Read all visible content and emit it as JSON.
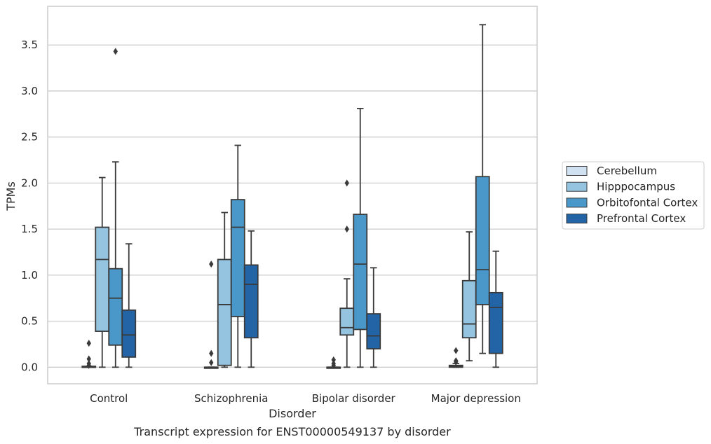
{
  "caption": "Transcript expression for ENST00000549137 by disorder",
  "chart_data": {
    "type": "boxplot",
    "xlabel": "Disorder",
    "ylabel": "TPMs",
    "ylim": [
      -0.18,
      3.92
    ],
    "yticks": [
      0.0,
      0.5,
      1.0,
      1.5,
      2.0,
      2.5,
      3.0,
      3.5
    ],
    "ytick_labels": [
      "0.0",
      "0.5",
      "1.0",
      "1.5",
      "2.0",
      "2.5",
      "3.0",
      "3.5"
    ],
    "grid": "horizontal",
    "legend_position": "right",
    "categories": [
      "Control",
      "Schizophrenia",
      "Bipolar disorder",
      "Major depression"
    ],
    "series": [
      {
        "name": "Cerebellum",
        "color": "#d0e1f2",
        "boxes": [
          {
            "q1": 0.0,
            "median": 0.0,
            "q3": 0.01,
            "whisker_low": 0.0,
            "whisker_high": 0.01,
            "outliers": [
              0.26,
              0.09,
              0.04,
              0.02
            ]
          },
          {
            "q1": 0.0,
            "median": 0.0,
            "q3": 0.0,
            "whisker_low": 0.0,
            "whisker_high": 0.0,
            "outliers": [
              1.12,
              0.15,
              0.05
            ]
          },
          {
            "q1": 0.0,
            "median": 0.0,
            "q3": 0.0,
            "whisker_low": 0.0,
            "whisker_high": 0.0,
            "outliers": [
              0.08,
              0.04,
              0.02
            ]
          },
          {
            "q1": 0.0,
            "median": 0.01,
            "q3": 0.02,
            "whisker_low": 0.0,
            "whisker_high": 0.04,
            "outliers": [
              0.18,
              0.07,
              0.06
            ]
          }
        ]
      },
      {
        "name": "Hipppocampus",
        "color": "#94c4df",
        "boxes": [
          {
            "q1": 0.39,
            "median": 1.17,
            "q3": 1.52,
            "whisker_low": 0.0,
            "whisker_high": 2.06,
            "outliers": []
          },
          {
            "q1": 0.02,
            "median": 0.68,
            "q3": 1.17,
            "whisker_low": 0.0,
            "whisker_high": 1.68,
            "outliers": []
          },
          {
            "q1": 0.35,
            "median": 0.43,
            "q3": 0.64,
            "whisker_low": 0.0,
            "whisker_high": 0.96,
            "outliers": [
              2.0,
              1.5
            ]
          },
          {
            "q1": 0.32,
            "median": 0.47,
            "q3": 0.94,
            "whisker_low": 0.07,
            "whisker_high": 1.47,
            "outliers": []
          }
        ]
      },
      {
        "name": "Orbitofontal Cortex",
        "color": "#4a98c9",
        "boxes": [
          {
            "q1": 0.24,
            "median": 0.75,
            "q3": 1.07,
            "whisker_low": 0.0,
            "whisker_high": 2.23,
            "outliers": [
              3.43
            ]
          },
          {
            "q1": 0.55,
            "median": 1.52,
            "q3": 1.82,
            "whisker_low": 0.0,
            "whisker_high": 2.41,
            "outliers": []
          },
          {
            "q1": 0.41,
            "median": 1.12,
            "q3": 1.66,
            "whisker_low": 0.0,
            "whisker_high": 2.81,
            "outliers": []
          },
          {
            "q1": 0.68,
            "median": 1.06,
            "q3": 2.07,
            "whisker_low": 0.15,
            "whisker_high": 3.72,
            "outliers": []
          }
        ]
      },
      {
        "name": "Prefrontal Cortex",
        "color": "#2264a6",
        "boxes": [
          {
            "q1": 0.11,
            "median": 0.35,
            "q3": 0.62,
            "whisker_low": 0.0,
            "whisker_high": 1.34,
            "outliers": []
          },
          {
            "q1": 0.32,
            "median": 0.9,
            "q3": 1.11,
            "whisker_low": 0.0,
            "whisker_high": 1.48,
            "outliers": []
          },
          {
            "q1": 0.2,
            "median": 0.34,
            "q3": 0.58,
            "whisker_low": 0.0,
            "whisker_high": 1.08,
            "outliers": []
          },
          {
            "q1": 0.15,
            "median": 0.65,
            "q3": 0.81,
            "whisker_low": 0.0,
            "whisker_high": 1.26,
            "outliers": []
          }
        ]
      }
    ]
  }
}
